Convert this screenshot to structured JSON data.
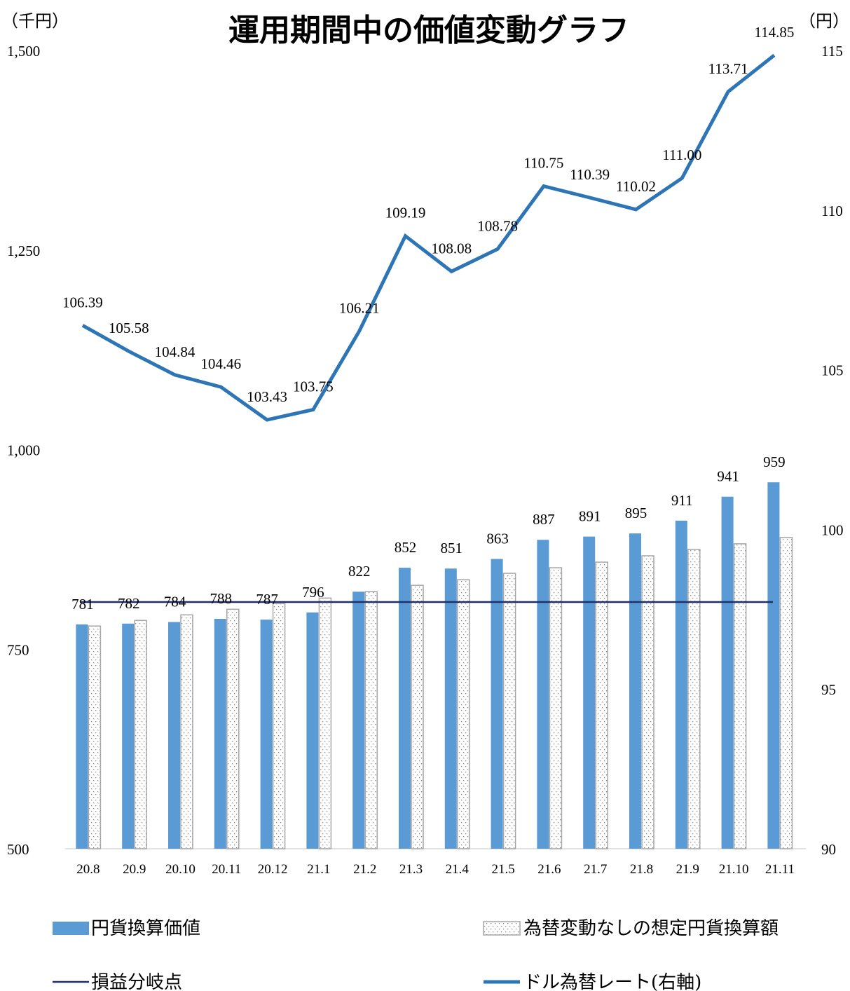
{
  "chart_data": {
    "type": "bar",
    "title": "運用期間中の価値変動グラフ",
    "left_unit": "（千円）",
    "right_unit": "（円）",
    "categories": [
      "20.8",
      "20.9",
      "20.10",
      "20.11",
      "20.12",
      "21.1",
      "21.2",
      "21.3",
      "21.4",
      "21.5",
      "21.6",
      "21.7",
      "21.8",
      "21.9",
      "21.10",
      "21.11"
    ],
    "y_left": {
      "ylim": [
        500,
        1500
      ],
      "ticks": [
        "500",
        "750",
        "1,000",
        "1,250",
        "1,500"
      ],
      "tick_values": [
        500,
        750,
        1000,
        1250,
        1500
      ]
    },
    "y_right": {
      "ylim": [
        90,
        115
      ],
      "ticks": [
        "90",
        "95",
        "100",
        "105",
        "110",
        "115"
      ],
      "tick_values": [
        90,
        95,
        100,
        105,
        110,
        115
      ]
    },
    "series": [
      {
        "name": "円貨換算価値",
        "kind": "bar",
        "axis": "left",
        "color": "#5b9bd5",
        "values": [
          781,
          782,
          784,
          788,
          787,
          796,
          822,
          852,
          851,
          863,
          887,
          891,
          895,
          911,
          941,
          959
        ],
        "labels": [
          "781",
          "782",
          "784",
          "788",
          "787",
          "796",
          "822",
          "852",
          "851",
          "863",
          "887",
          "891",
          "895",
          "911",
          "941",
          "959"
        ]
      },
      {
        "name": "為替変動なしの想定円貨換算額",
        "kind": "bar",
        "axis": "left",
        "pattern": "dotted",
        "color": "#a6a6a6",
        "values": [
          779,
          786,
          793,
          800,
          807,
          814,
          822,
          830,
          837,
          845,
          852,
          859,
          867,
          875,
          882,
          890
        ]
      },
      {
        "name": "損益分岐点",
        "kind": "line",
        "axis": "left",
        "color": "#1f2f6b",
        "value": 809
      },
      {
        "name": "ドル為替レート(右軸)",
        "kind": "line",
        "axis": "right",
        "color": "#2e75b6",
        "values": [
          106.39,
          105.58,
          104.84,
          104.46,
          103.43,
          103.75,
          106.21,
          109.19,
          108.08,
          108.78,
          110.75,
          110.39,
          110.02,
          111.0,
          113.71,
          114.85
        ],
        "labels": [
          "106.39",
          "105.58",
          "104.84",
          "104.46",
          "103.43",
          "103.75",
          "106.21",
          "109.19",
          "108.08",
          "108.78",
          "110.75",
          "110.39",
          "110.02",
          "111.00",
          "113.71",
          "114.85"
        ]
      }
    ],
    "legend": {
      "placement": "bottom",
      "items": [
        {
          "label": "円貨換算価値",
          "swatch": "bar"
        },
        {
          "label": "為替変動なしの想定円貨換算額",
          "swatch": "dotted-bar"
        },
        {
          "label": "損益分岐点",
          "swatch": "thin-line"
        },
        {
          "label": "ドル為替レート(右軸)",
          "swatch": "thick-line"
        }
      ]
    }
  }
}
